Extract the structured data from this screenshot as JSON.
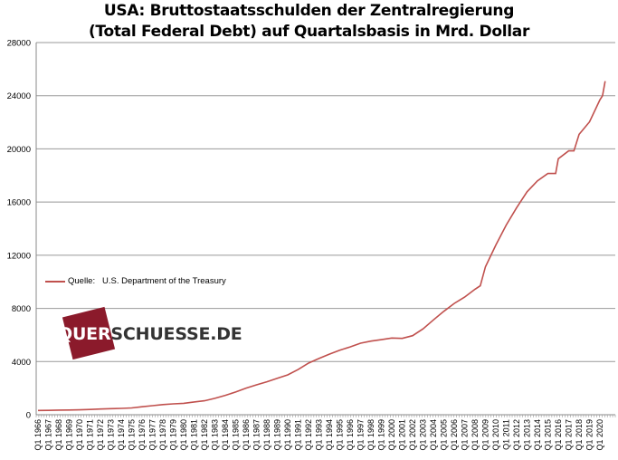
{
  "chart_data": {
    "type": "line",
    "title": [
      "USA: Bruttostaatsschulden der Zentralregierung",
      "(Total Federal Debt) auf Quartalsbasis in Mrd. Dollar"
    ],
    "xlabel": "",
    "ylabel": "",
    "ylim": [
      0,
      28000
    ],
    "yticks": [
      "0",
      "4000",
      "8000",
      "12000",
      "16000",
      "20000",
      "24000",
      "28000"
    ],
    "ytick_values": [
      0,
      4000,
      8000,
      12000,
      16000,
      20000,
      24000,
      28000
    ],
    "xtick_labels": [
      "Q1 1966",
      "Q1 1967",
      "Q1 1968",
      "Q1 1969",
      "Q1 1970",
      "Q1 1971",
      "Q1 1972",
      "Q1 1973",
      "Q1 1974",
      "Q1 1975",
      "Q1 1976",
      "Q1 1977",
      "Q1 1978",
      "Q1 1979",
      "Q1 1980",
      "Q1 1981",
      "Q1 1982",
      "Q1 1983",
      "Q1 1984",
      "Q1 1985",
      "Q1 1986",
      "Q1 1987",
      "Q1 1988",
      "Q1 1989",
      "Q1 1990",
      "Q1 1991",
      "Q1 1992",
      "Q1 1993",
      "Q1 1994",
      "Q1 1995",
      "Q1 1996",
      "Q1 1997",
      "Q1 1998",
      "Q1 1999",
      "Q1 2000",
      "Q1 2001",
      "Q1 2002",
      "Q1 2003",
      "Q1 2004",
      "Q1 2005",
      "Q1 2006",
      "Q1 2007",
      "Q1 2008",
      "Q1 2009",
      "Q1 2010",
      "Q1 2011",
      "Q1 2012",
      "Q1 2013",
      "Q1 2014",
      "Q1 2015",
      "Q1 2016",
      "Q1 2017",
      "Q1 2018",
      "Q1 2019",
      "Q1 2020"
    ],
    "grid": true,
    "series": [
      {
        "name": "Quelle:   U.S. Department of the Treasury",
        "color": "#c0504d",
        "x": [
          1966,
          1967,
          1968,
          1969,
          1970,
          1971,
          1972,
          1973,
          1974,
          1975,
          1976,
          1977,
          1978,
          1979,
          1980,
          1981,
          1982,
          1983,
          1984,
          1985,
          1986,
          1987,
          1988,
          1989,
          1990,
          1991,
          1992,
          1993,
          1994,
          1995,
          1996,
          1997,
          1998,
          1999,
          2000,
          2001,
          2002,
          2003,
          2004,
          2005,
          2006,
          2007,
          2008,
          2008.5,
          2009,
          2010,
          2011,
          2012,
          2013,
          2014,
          2015,
          2015.75,
          2016,
          2017,
          2017.5,
          2018,
          2019,
          2020,
          2020.25,
          2020.5
        ],
        "values": [
          320,
          326,
          345,
          354,
          370,
          397,
          427,
          458,
          475,
          508,
          600,
          680,
          760,
          820,
          860,
          960,
          1050,
          1230,
          1460,
          1710,
          2000,
          2250,
          2480,
          2740,
          3000,
          3400,
          3880,
          4230,
          4560,
          4860,
          5100,
          5380,
          5540,
          5650,
          5770,
          5740,
          5950,
          6460,
          7130,
          7780,
          8370,
          8850,
          9440,
          9700,
          11130,
          12770,
          14270,
          15580,
          16770,
          17600,
          18150,
          18150,
          19260,
          19850,
          19850,
          21090,
          22030,
          23690,
          24000,
          25100
        ]
      }
    ],
    "legend": "center-left"
  },
  "watermark": "QUERSCHUESSE.DE"
}
